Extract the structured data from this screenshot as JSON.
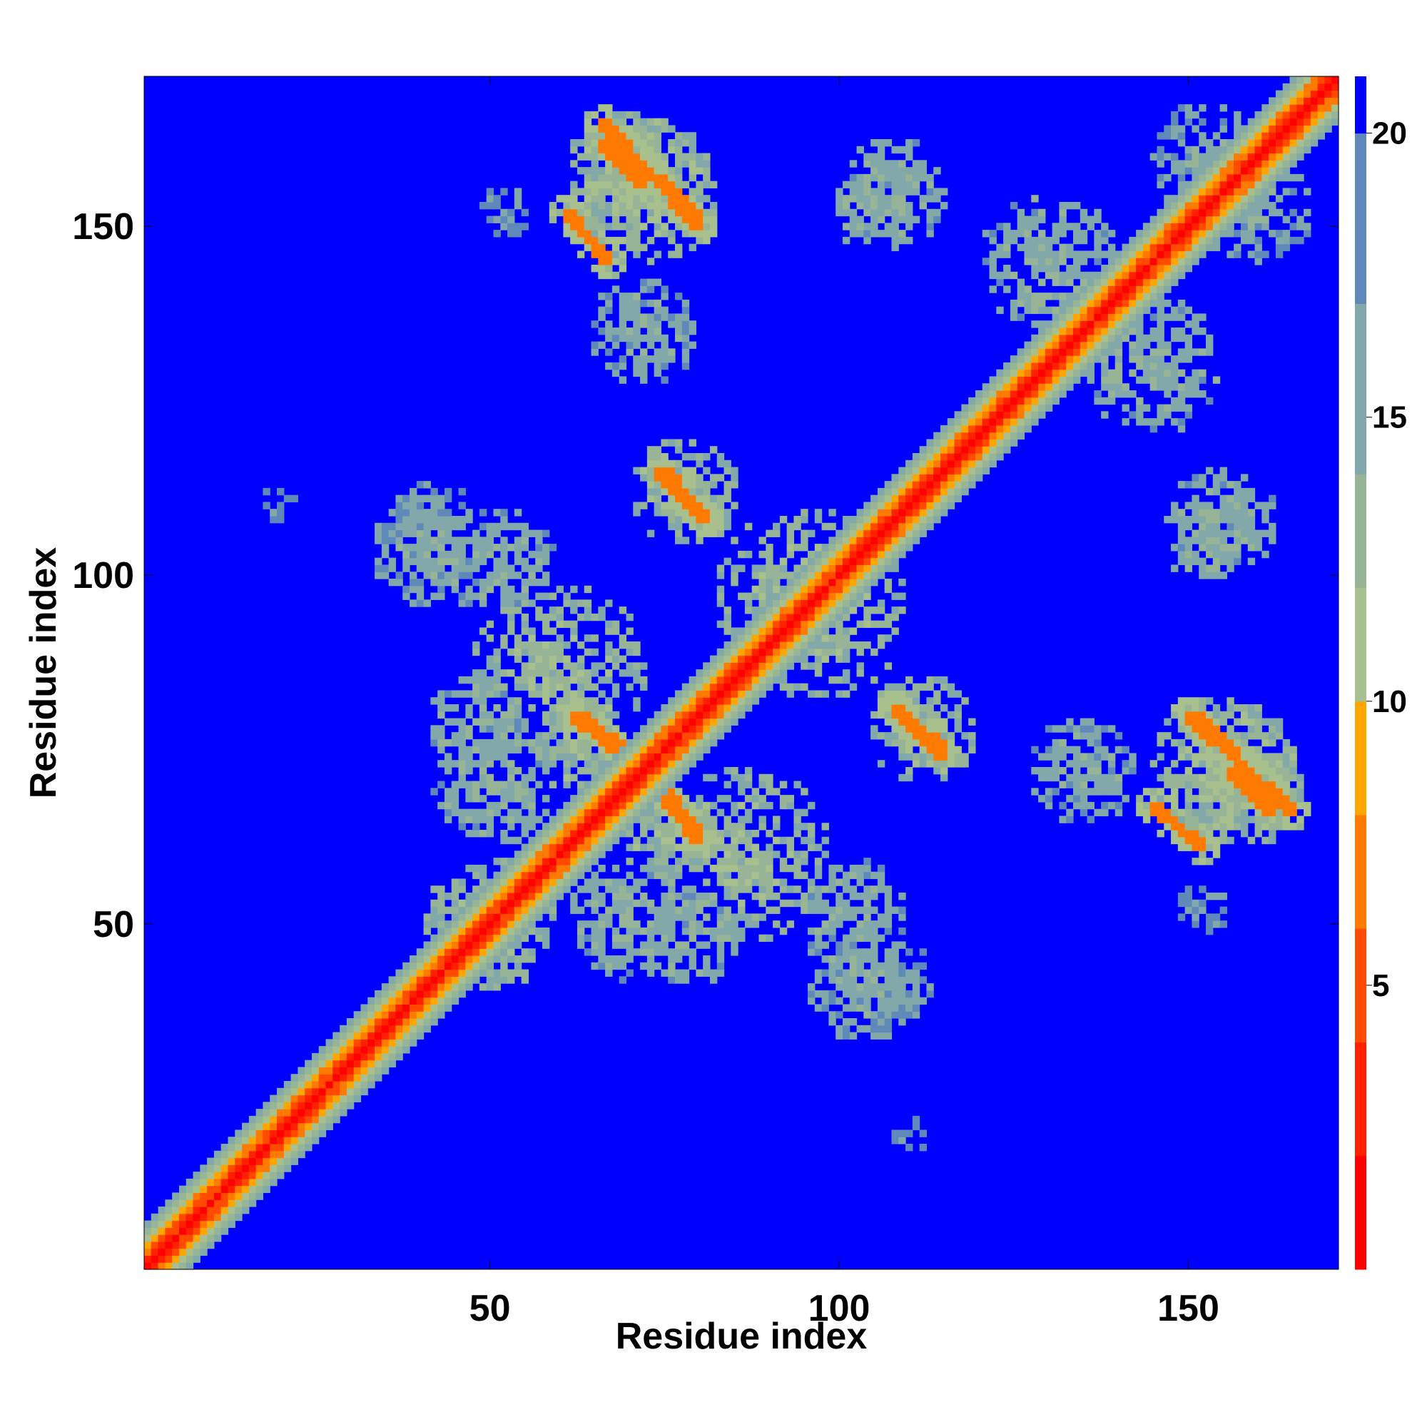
{
  "chart_data": {
    "type": "heatmap",
    "title": "",
    "xlabel": "Residue index",
    "ylabel": "Residue index",
    "xlim": [
      1,
      171
    ],
    "ylim": [
      1,
      171
    ],
    "x_ticks": [
      50,
      100,
      150
    ],
    "y_ticks": [
      50,
      100,
      150
    ],
    "colorbar": {
      "ticks": [
        5,
        10,
        15,
        20
      ],
      "range": [
        0,
        21
      ],
      "colors": [
        "#ff0000",
        "#ff2000",
        "#ff4a00",
        "#ff7a00",
        "#ffa500",
        "#a8c08e",
        "#98b496",
        "#82a8aa",
        "#5f89b9",
        "#0000ff"
      ],
      "bounds": [
        0,
        2,
        4,
        6,
        8,
        10,
        12,
        14,
        17,
        20,
        21
      ]
    },
    "diagonal": "symmetric distance map, low values along the diagonal",
    "off_diagonal_contact_bands": [
      {
        "x": [
          66,
          72
        ],
        "y": [
          155,
          163
        ],
        "min_value": 6
      },
      {
        "x": [
          74,
          80
        ],
        "y": [
          150,
          158
        ],
        "min_value": 6
      },
      {
        "x": [
          74,
          82
        ],
        "y": [
          108,
          116
        ],
        "min_value": 6
      },
      {
        "x": [
          62,
          68
        ],
        "y": [
          75,
          81
        ],
        "min_value": 6
      },
      {
        "x": [
          108,
          115
        ],
        "y": [
          75,
          82
        ],
        "min_value": 6
      },
      {
        "x": [
          150,
          164
        ],
        "y": [
          66,
          80
        ],
        "min_value": 6
      },
      {
        "x": [
          144,
          152
        ],
        "y": [
          60,
          68
        ],
        "min_value": 6
      },
      {
        "x": [
          75,
          80
        ],
        "y": [
          62,
          70
        ],
        "min_value": 6
      }
    ]
  }
}
